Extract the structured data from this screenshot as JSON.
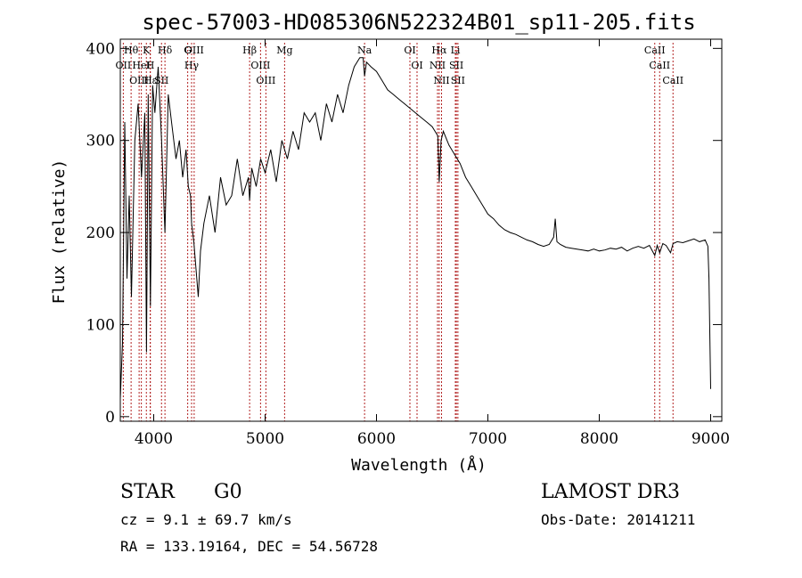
{
  "chart_data": {
    "type": "line",
    "title": "spec-57003-HD085306N522324B01_sp11-205.fits",
    "xlabel": "Wavelength (Å)",
    "ylabel": "Flux (relative)",
    "xlim": [
      3700,
      9100
    ],
    "ylim": [
      -5,
      410
    ],
    "x_ticks": [
      4000,
      5000,
      6000,
      7000,
      8000,
      9000
    ],
    "y_ticks": [
      0,
      100,
      200,
      300,
      400
    ],
    "grid": false,
    "series": [
      {
        "color": "#000000",
        "x": [
          3700,
          3720,
          3740,
          3760,
          3780,
          3800,
          3830,
          3860,
          3890,
          3920,
          3935,
          3950,
          3970,
          3990,
          4010,
          4040,
          4070,
          4101,
          4130,
          4160,
          4200,
          4230,
          4260,
          4290,
          4310,
          4330,
          4340,
          4360,
          4380,
          4400,
          4420,
          4450,
          4500,
          4550,
          4600,
          4650,
          4700,
          4750,
          4800,
          4850,
          4861,
          4880,
          4920,
          4960,
          5000,
          5050,
          5100,
          5150,
          5200,
          5250,
          5300,
          5350,
          5400,
          5450,
          5500,
          5550,
          5600,
          5650,
          5700,
          5750,
          5800,
          5850,
          5880,
          5893,
          5910,
          5950,
          6000,
          6050,
          6100,
          6150,
          6200,
          6250,
          6300,
          6350,
          6400,
          6450,
          6500,
          6550,
          6563,
          6580,
          6600,
          6650,
          6700,
          6750,
          6800,
          6850,
          6900,
          6950,
          7000,
          7050,
          7100,
          7150,
          7200,
          7250,
          7300,
          7350,
          7400,
          7450,
          7500,
          7550,
          7590,
          7605,
          7620,
          7650,
          7700,
          7750,
          7800,
          7850,
          7900,
          7950,
          8000,
          8050,
          8100,
          8150,
          8200,
          8250,
          8300,
          8350,
          8400,
          8450,
          8498,
          8520,
          8542,
          8570,
          8600,
          8640,
          8662,
          8700,
          8750,
          8800,
          8850,
          8900,
          8950,
          8975,
          8985,
          9000
        ],
        "values": [
          20,
          80,
          320,
          150,
          240,
          130,
          300,
          340,
          260,
          330,
          70,
          350,
          120,
          360,
          330,
          380,
          300,
          200,
          350,
          320,
          280,
          300,
          260,
          290,
          250,
          240,
          210,
          190,
          160,
          130,
          180,
          210,
          240,
          200,
          260,
          230,
          240,
          280,
          240,
          260,
          235,
          270,
          250,
          280,
          265,
          290,
          255,
          300,
          280,
          310,
          290,
          330,
          320,
          330,
          300,
          340,
          320,
          350,
          330,
          360,
          380,
          390,
          390,
          370,
          385,
          380,
          375,
          365,
          355,
          350,
          345,
          340,
          335,
          330,
          325,
          320,
          315,
          305,
          255,
          300,
          310,
          295,
          285,
          275,
          260,
          250,
          240,
          230,
          220,
          215,
          208,
          203,
          200,
          198,
          195,
          192,
          190,
          187,
          185,
          187,
          195,
          215,
          190,
          187,
          184,
          183,
          182,
          181,
          180,
          182,
          180,
          181,
          183,
          182,
          184,
          180,
          183,
          185,
          183,
          186,
          175,
          186,
          178,
          188,
          186,
          178,
          188,
          190,
          189,
          191,
          193,
          190,
          192,
          185,
          150,
          30
        ]
      }
    ],
    "line_markers": [
      {
        "label": "Hθ",
        "x": 3797
      },
      {
        "label": "OII",
        "x": 3727
      },
      {
        "label": "OIII",
        "x": 3869
      },
      {
        "label": "K",
        "x": 3934
      },
      {
        "label": "HeI",
        "x": 3889
      },
      {
        "label": "Hε",
        "x": 3970
      },
      {
        "label": "H",
        "x": 3968
      },
      {
        "label": "Hδ",
        "x": 4101
      },
      {
        "label": "SII",
        "x": 4070
      },
      {
        "label": "OIII",
        "x": 4363
      },
      {
        "label": "Hγ",
        "x": 4340
      },
      {
        "label": "G",
        "x": 4305
      },
      {
        "label": "Hβ",
        "x": 4861
      },
      {
        "label": "OIII",
        "x": 4959
      },
      {
        "label": "OIII",
        "x": 5007
      },
      {
        "label": "Mg",
        "x": 5175
      },
      {
        "label": "Na",
        "x": 5893
      },
      {
        "label": "OI",
        "x": 6300
      },
      {
        "label": "OI",
        "x": 6364
      },
      {
        "label": "Hα",
        "x": 6563
      },
      {
        "label": "NII",
        "x": 6548
      },
      {
        "label": "NII",
        "x": 6584
      },
      {
        "label": "SII",
        "x": 6717
      },
      {
        "label": "Li",
        "x": 6708
      },
      {
        "label": "SII",
        "x": 6731
      },
      {
        "label": "CaII",
        "x": 8498
      },
      {
        "label": "CaII",
        "x": 8542
      },
      {
        "label": "CaII",
        "x": 8662
      }
    ],
    "marker_color": "#b22222"
  },
  "info": {
    "object_class": "STAR",
    "subclass": "G0",
    "survey": "LAMOST DR3",
    "redshift": "cz = 9.1 ± 69.7 km/s",
    "obs_date": "Obs-Date: 20141211",
    "coords": "RA = 133.19164, DEC =  54.56728"
  }
}
